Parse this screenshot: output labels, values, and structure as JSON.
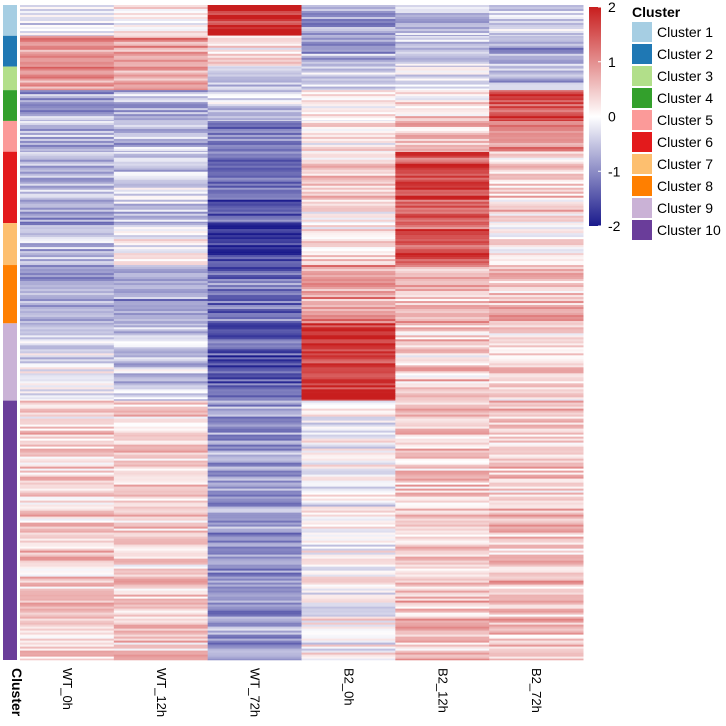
{
  "chart_data": {
    "type": "heatmap",
    "columns": [
      "WT_0h",
      "WT_12h",
      "WT_72h",
      "B2_0h",
      "B2_12h",
      "B2_72h"
    ],
    "row_annotation_label": "Cluster",
    "color_scale": {
      "min": -2,
      "max": 2,
      "ticks": [
        "2",
        "1",
        "0",
        "-1",
        "-2"
      ],
      "tick_values": [
        2,
        1,
        0,
        -1,
        -2
      ],
      "low_color": "#1a1a8c",
      "mid_color": "#ffffff",
      "high_color": "#c81e1e"
    },
    "legend": {
      "title": "Cluster",
      "entries": [
        {
          "name": "Cluster 1",
          "color": "#a6cee3"
        },
        {
          "name": "Cluster 2",
          "color": "#1f78b4"
        },
        {
          "name": "Cluster 3",
          "color": "#b2df8a"
        },
        {
          "name": "Cluster 4",
          "color": "#33a02c"
        },
        {
          "name": "Cluster 5",
          "color": "#fb9a99"
        },
        {
          "name": "Cluster 6",
          "color": "#e31a1c"
        },
        {
          "name": "Cluster 7",
          "color": "#fdbf6f"
        },
        {
          "name": "Cluster 8",
          "color": "#ff7f00"
        },
        {
          "name": "Cluster 9",
          "color": "#cab2d6"
        },
        {
          "name": "Cluster 10",
          "color": "#6a3d9a"
        }
      ]
    },
    "clusters": [
      {
        "name": "Cluster 1",
        "row_fraction": 0.047,
        "mean_values": [
          -0.3,
          0.1,
          1.8,
          -0.8,
          -0.6,
          -0.4
        ]
      },
      {
        "name": "Cluster 2",
        "row_fraction": 0.047,
        "mean_values": [
          1.0,
          0.9,
          0.3,
          -0.8,
          -0.5,
          -0.8
        ]
      },
      {
        "name": "Cluster 3",
        "row_fraction": 0.036,
        "mean_values": [
          0.9,
          0.8,
          -0.5,
          -0.5,
          -0.3,
          -0.6
        ]
      },
      {
        "name": "Cluster 4",
        "row_fraction": 0.047,
        "mean_values": [
          -0.7,
          -0.6,
          -0.3,
          0.2,
          0.3,
          1.6
        ]
      },
      {
        "name": "Cluster 5",
        "row_fraction": 0.047,
        "mean_values": [
          -0.6,
          -0.5,
          -1.2,
          0.3,
          0.6,
          1.0
        ]
      },
      {
        "name": "Cluster 6",
        "row_fraction": 0.109,
        "mean_values": [
          -0.7,
          -0.4,
          -1.3,
          0.3,
          1.5,
          0.4
        ]
      },
      {
        "name": "Cluster 7",
        "row_fraction": 0.064,
        "mean_values": [
          -0.6,
          -0.1,
          -1.7,
          0.3,
          1.5,
          0.1
        ]
      },
      {
        "name": "Cluster 8",
        "row_fraction": 0.089,
        "mean_values": [
          -0.8,
          -0.8,
          -1.2,
          0.9,
          0.6,
          0.5
        ]
      },
      {
        "name": "Cluster 9",
        "row_fraction": 0.118,
        "mean_values": [
          -0.2,
          -0.4,
          -1.4,
          1.7,
          0.4,
          0.3
        ]
      },
      {
        "name": "Cluster 10",
        "row_fraction": 0.396,
        "mean_values": [
          0.4,
          0.4,
          -0.9,
          0.0,
          0.5,
          0.5
        ]
      }
    ]
  }
}
